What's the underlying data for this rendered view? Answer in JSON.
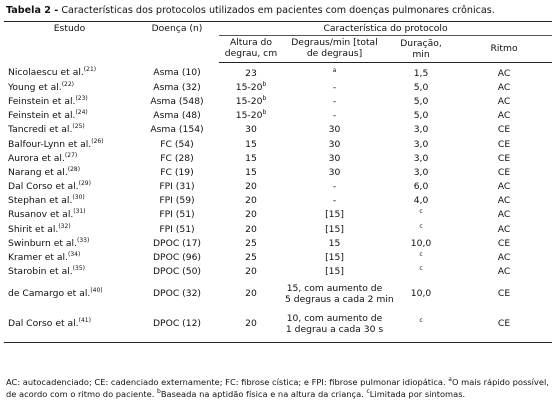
{
  "title": {
    "label": "Tabela 2 -",
    "text": "Características dos protocolos utilizados em pacientes com doenças pulmonares crônicas."
  },
  "table": {
    "headers": {
      "study": "Estudo",
      "disease": "Doença (n)",
      "group": "Característica do protocolo",
      "height": "Altura do degrau, cm",
      "steps": "Degraus/min [total de degraus]",
      "duration": "Duração, min",
      "rhythm": "Ritmo"
    },
    "rows": [
      {
        "study": "Nicolaescu et al.",
        "ref": "(21)",
        "disease": "Asma (10)",
        "height": "23",
        "steps_sup": "a",
        "duration": "1,5",
        "rhythm": "AC"
      },
      {
        "study": "Young et al.",
        "ref": "(22)",
        "disease": "Asma (32)",
        "height": "15-20",
        "height_sup": "b",
        "steps": "-",
        "duration": "5,0",
        "rhythm": "AC"
      },
      {
        "study": "Feinstein et al.",
        "ref": "(23)",
        "disease": "Asma (548)",
        "height": "15-20",
        "height_sup": "b",
        "steps": "-",
        "duration": "5,0",
        "rhythm": "AC"
      },
      {
        "study": "Feinstein et al.",
        "ref": "(24)",
        "disease": "Asma (48)",
        "height": "15-20",
        "height_sup": "b",
        "steps": "-",
        "duration": "5,0",
        "rhythm": "AC"
      },
      {
        "study": "Tancredi et al.",
        "ref": "(25)",
        "disease": "Asma (154)",
        "height": "30",
        "steps": "30",
        "duration": "3,0",
        "rhythm": "CE"
      },
      {
        "study": "Balfour-Lynn et al.",
        "ref": "(26)",
        "disease": "FC (54)",
        "height": "15",
        "steps": "30",
        "duration": "3,0",
        "rhythm": "CE"
      },
      {
        "study": "Aurora et al.",
        "ref": "(27)",
        "disease": "FC (28)",
        "height": "15",
        "steps": "30",
        "duration": "3,0",
        "rhythm": "CE"
      },
      {
        "study": "Narang et al.",
        "ref": "(28)",
        "disease": "FC (19)",
        "height": "15",
        "steps": "30",
        "duration": "3,0",
        "rhythm": "CE"
      },
      {
        "study": "Dal Corso et al.",
        "ref": "(29)",
        "disease": "FPI (31)",
        "height": "20",
        "steps": "-",
        "duration": "6,0",
        "rhythm": "AC"
      },
      {
        "study": "Stephan et al.",
        "ref": "(30)",
        "disease": "FPI (59)",
        "height": "20",
        "steps": "-",
        "duration": "4,0",
        "rhythm": "AC"
      },
      {
        "study": "Rusanov et al.",
        "ref": "(31)",
        "disease": "FPI (51)",
        "height": "20",
        "steps": "[15]",
        "duration_sup": "c",
        "rhythm": "AC"
      },
      {
        "study": "Shirit et al.",
        "ref": "(32)",
        "disease": "FPI (51)",
        "height": "20",
        "steps": "[15]",
        "duration_sup": "c",
        "rhythm": "AC"
      },
      {
        "study": "Swinburn et al.",
        "ref": "(33)",
        "disease": "DPOC (17)",
        "height": "25",
        "steps": "15",
        "duration": "10,0",
        "rhythm": "CE"
      },
      {
        "study": "Kramer et al.",
        "ref": "(34)",
        "disease": "DPOC (96)",
        "height": "25",
        "steps": "[15]",
        "duration_sup": "c",
        "rhythm": "AC"
      },
      {
        "study": "Starobin et al.",
        "ref": "(35)",
        "disease": "DPOC (50)",
        "height": "20",
        "steps": "[15]",
        "duration_sup": "c",
        "rhythm": "AC"
      },
      {
        "study": "de Camargo et al.",
        "ref": "(40)",
        "disease": "DPOC (32)",
        "height": "20",
        "steps_lines": [
          "15, com aumento de",
          "5 degraus a cada 2 min"
        ],
        "duration": "10,0",
        "rhythm": "CE"
      },
      {
        "study": "Dal Corso et al.",
        "ref": "(41)",
        "disease": "DPOC (12)",
        "height": "20",
        "steps_lines": [
          "10, com aumento de",
          "1 degrau a cada 30 s"
        ],
        "duration_sup": "c",
        "rhythm": "CE"
      }
    ]
  },
  "footnote": [
    {
      "text": "AC: autocadenciado; CE: cadenciado externamente; FC: fibrose cística; e FPI: fibrose pulmonar idiopática. "
    },
    {
      "sup": "a"
    },
    {
      "text": "O mais rápido possível, de acordo com o ritmo do paciente. "
    },
    {
      "sup": "b"
    },
    {
      "text": "Baseada na aptidão física e na altura da criança. "
    },
    {
      "sup": "c"
    },
    {
      "text": "Limitada por sintomas."
    }
  ]
}
